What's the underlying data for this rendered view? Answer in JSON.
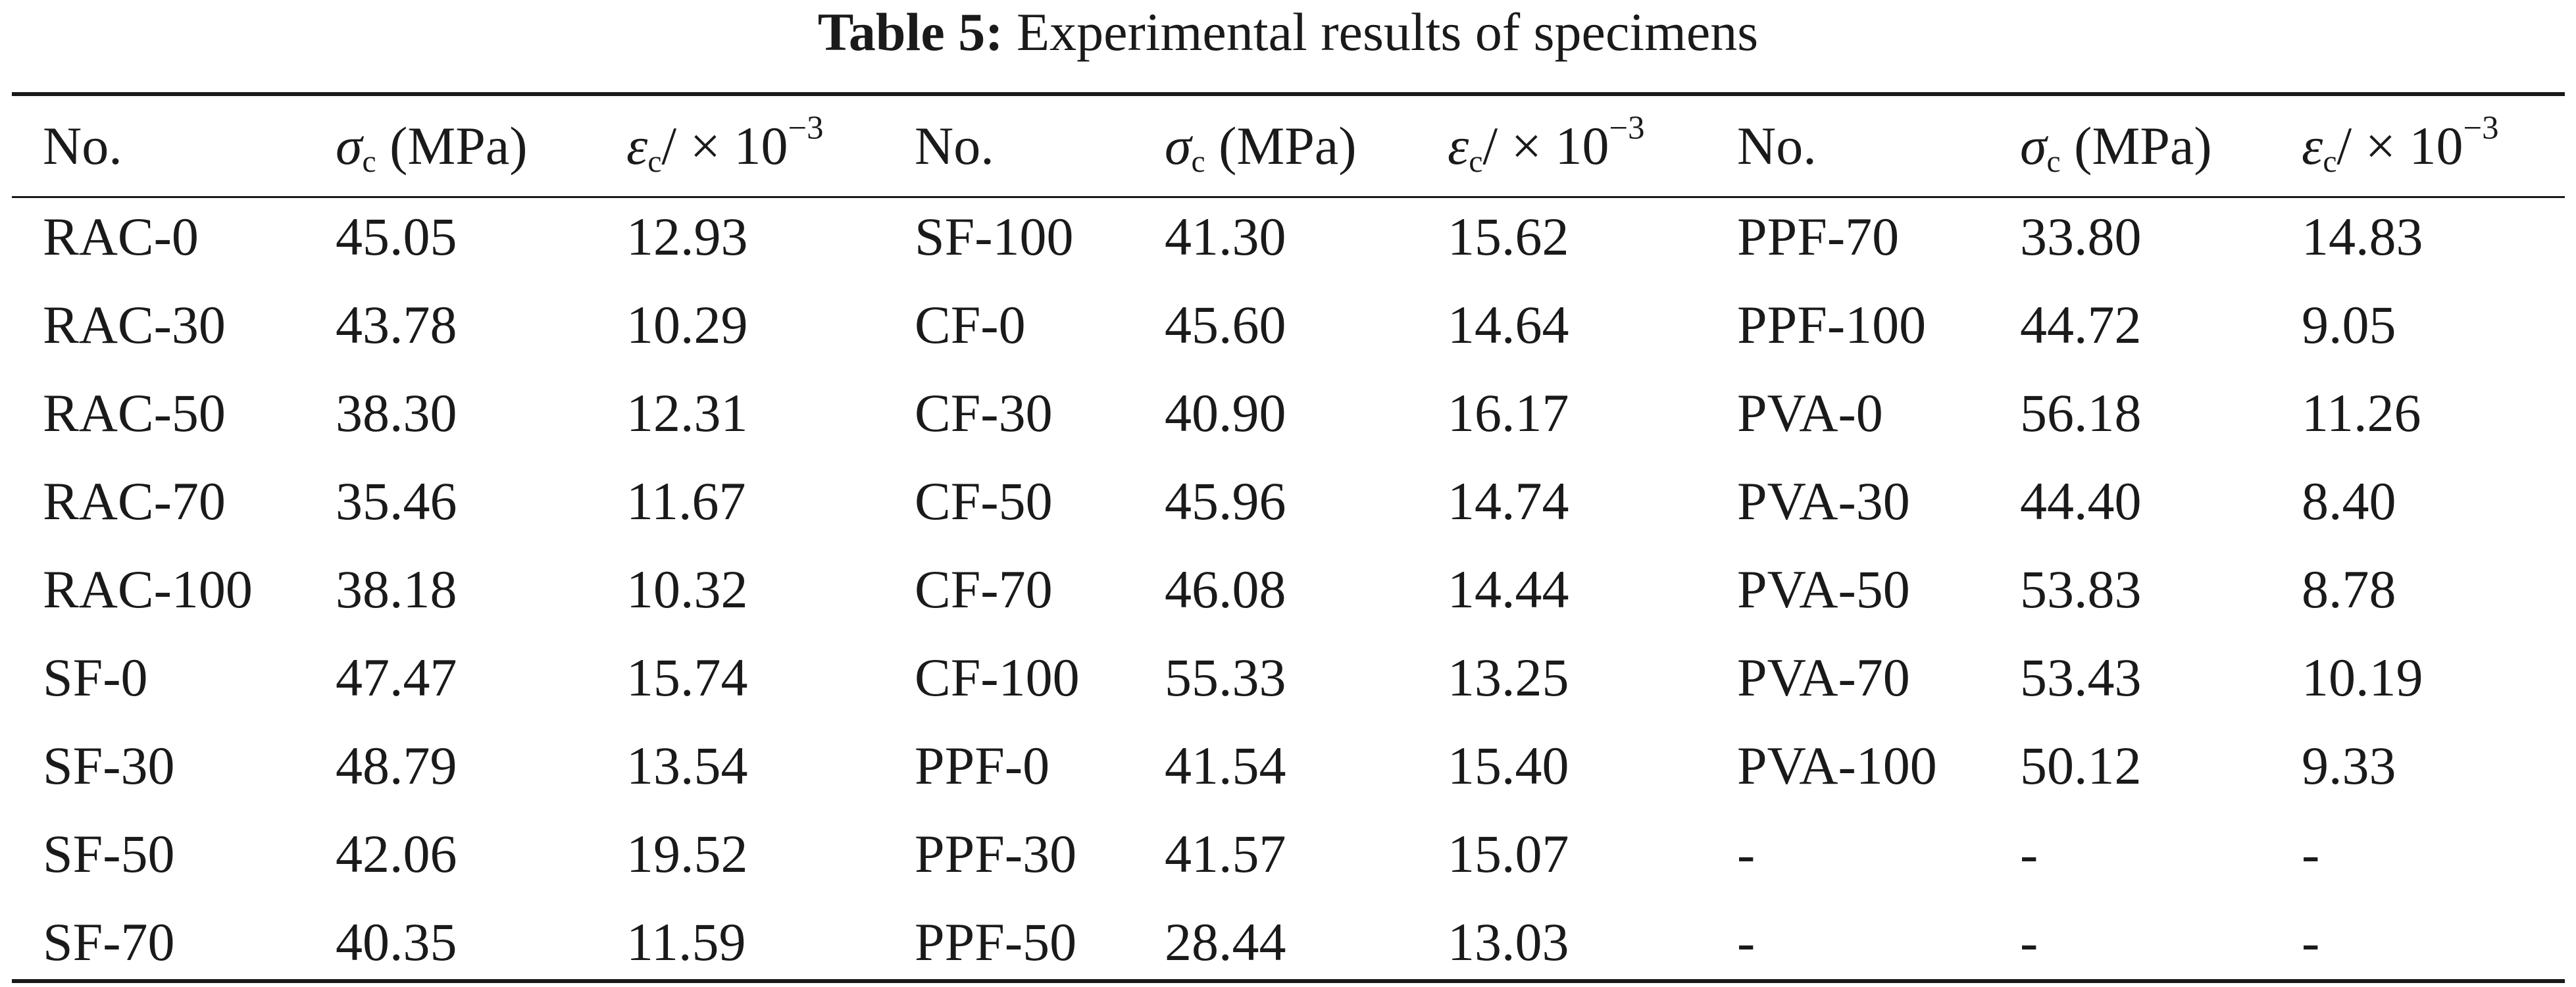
{
  "caption": {
    "label": "Table 5:",
    "text": "Experimental results of specimens"
  },
  "headers": {
    "no": "No.",
    "sigma_symbol": "σ",
    "sigma_sub": "c",
    "sigma_unit": " (MPa)",
    "eps_symbol": "ε",
    "eps_sub": "c",
    "eps_unit": "/ × 10",
    "eps_exp": "−3"
  },
  "rows": [
    [
      [
        "RAC-0",
        "45.05",
        "12.93"
      ],
      [
        "SF-100",
        "41.30",
        "15.62"
      ],
      [
        "PPF-70",
        "33.80",
        "14.83"
      ]
    ],
    [
      [
        "RAC-30",
        "43.78",
        "10.29"
      ],
      [
        "CF-0",
        "45.60",
        "14.64"
      ],
      [
        "PPF-100",
        "44.72",
        "9.05"
      ]
    ],
    [
      [
        "RAC-50",
        "38.30",
        "12.31"
      ],
      [
        "CF-30",
        "40.90",
        "16.17"
      ],
      [
        "PVA-0",
        "56.18",
        "11.26"
      ]
    ],
    [
      [
        "RAC-70",
        "35.46",
        "11.67"
      ],
      [
        "CF-50",
        "45.96",
        "14.74"
      ],
      [
        "PVA-30",
        "44.40",
        "8.40"
      ]
    ],
    [
      [
        "RAC-100",
        "38.18",
        "10.32"
      ],
      [
        "CF-70",
        "46.08",
        "14.44"
      ],
      [
        "PVA-50",
        "53.83",
        "8.78"
      ]
    ],
    [
      [
        "SF-0",
        "47.47",
        "15.74"
      ],
      [
        "CF-100",
        "55.33",
        "13.25"
      ],
      [
        "PVA-70",
        "53.43",
        "10.19"
      ]
    ],
    [
      [
        "SF-30",
        "48.79",
        "13.54"
      ],
      [
        "PPF-0",
        "41.54",
        "15.40"
      ],
      [
        "PVA-100",
        "50.12",
        "9.33"
      ]
    ],
    [
      [
        "SF-50",
        "42.06",
        "19.52"
      ],
      [
        "PPF-30",
        "41.57",
        "15.07"
      ],
      [
        "-",
        "-",
        "-"
      ]
    ],
    [
      [
        "SF-70",
        "40.35",
        "11.59"
      ],
      [
        "PPF-50",
        "28.44",
        "13.03"
      ],
      [
        "-",
        "-",
        "-"
      ]
    ]
  ]
}
